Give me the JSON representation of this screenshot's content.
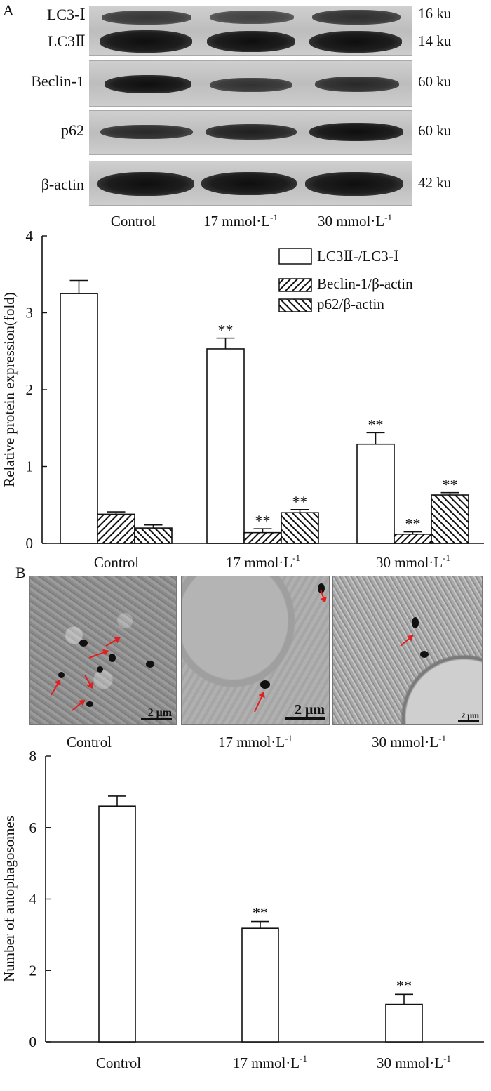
{
  "panel_a_label": "A",
  "panel_b_label": "B",
  "blot": {
    "rows": [
      {
        "label": "LC3-Ⅰ",
        "size": "16 ku"
      },
      {
        "label": "LC3Ⅱ",
        "size": "14 ku"
      },
      {
        "label": "Beclin-1",
        "size": "60 ku"
      },
      {
        "label": "p62",
        "size": "60 ku"
      },
      {
        "label": "β-actin",
        "size": "42 ku"
      }
    ],
    "lanes": [
      {
        "main": "Control",
        "sup": ""
      },
      {
        "main": "17 mmol·L",
        "sup": "-1"
      },
      {
        "main": "30 mmol·L",
        "sup": "-1"
      }
    ]
  },
  "em_images": {
    "scale_labels": [
      "2 μm",
      "2 μm",
      "2 μm"
    ],
    "captions": [
      {
        "main": "Control",
        "sup": ""
      },
      {
        "main": "17 mmol·L",
        "sup": "-1"
      },
      {
        "main": "30 mmol·L",
        "sup": "-1"
      }
    ]
  },
  "chart_data": [
    {
      "type": "bar",
      "categories": [
        {
          "main": "Control",
          "sup": ""
        },
        {
          "main": "17 mmol·L",
          "sup": "-1"
        },
        {
          "main": "30 mmol·L",
          "sup": "-1"
        }
      ],
      "series": [
        {
          "name": "LC3Ⅱ-/LC3-Ⅰ",
          "pattern": "open",
          "values": [
            3.25,
            2.53,
            1.29
          ],
          "errors": [
            0.17,
            0.14,
            0.15
          ],
          "significance": [
            "",
            "**",
            "**"
          ]
        },
        {
          "name": "Beclin-1/β-actin",
          "pattern": "hatch-up",
          "values": [
            0.38,
            0.14,
            0.12
          ],
          "errors": [
            0.03,
            0.05,
            0.03
          ],
          "significance": [
            "",
            "**",
            "**"
          ]
        },
        {
          "name": "p62/β-actin",
          "pattern": "hatch-down",
          "values": [
            0.2,
            0.4,
            0.63
          ],
          "errors": [
            0.04,
            0.04,
            0.03
          ],
          "significance": [
            "",
            "**",
            "**"
          ]
        }
      ],
      "ylabel": "Relative protein expression(fold)",
      "ylim": [
        0,
        4
      ],
      "yticks": [
        0,
        1,
        2,
        3,
        4
      ],
      "legend": "top-right",
      "grid": false
    },
    {
      "type": "bar",
      "categories": [
        {
          "main": "Control",
          "sup": ""
        },
        {
          "main": "17 mmol·L",
          "sup": "-1"
        },
        {
          "main": "30 mmol·L",
          "sup": "-1"
        }
      ],
      "series": [
        {
          "values": [
            6.6,
            3.18,
            1.05
          ],
          "errors": [
            0.28,
            0.19,
            0.28
          ],
          "significance": [
            "",
            "**",
            "**"
          ]
        }
      ],
      "ylabel": "Number of autophagosomes",
      "ylim": [
        0,
        8
      ],
      "yticks": [
        0,
        2,
        4,
        6,
        8
      ],
      "grid": false
    }
  ]
}
